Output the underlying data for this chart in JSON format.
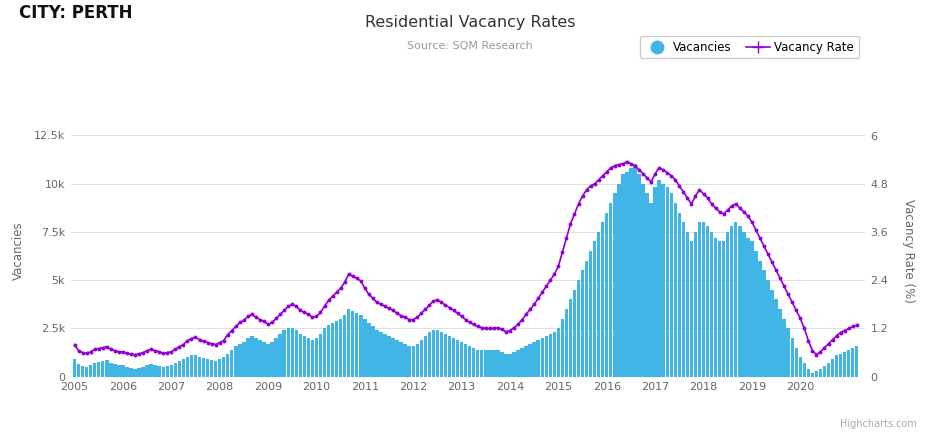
{
  "title": "Residential Vacancy Rates",
  "subtitle": "Source: SQM Research",
  "header": "CITY: PERTH",
  "ylabel_left": "Vacancies",
  "ylabel_right": "Vacancy Rate (%)",
  "bar_color": "#41b6e6",
  "line_color": "#9400d3",
  "background_color": "#ffffff",
  "plot_bg_color": "#ffffff",
  "grid_color": "#e0e0e0",
  "ylim_left": [
    0,
    13000
  ],
  "ylim_right": [
    0,
    6.25
  ],
  "yticks_left": [
    0,
    2500,
    5000,
    7500,
    10000,
    12500
  ],
  "ytick_labels_left": [
    "0",
    "2.5k",
    "5k",
    "7.5k",
    "10k",
    "12.5k"
  ],
  "yticks_right": [
    0,
    1.2,
    2.4,
    3.6,
    4.8,
    6.0
  ],
  "ytick_labels_right": [
    "0",
    "1.2",
    "2.4",
    "3.6",
    "4.8",
    "6"
  ],
  "vacancies": [
    900,
    650,
    550,
    500,
    600,
    700,
    750,
    800,
    850,
    700,
    650,
    600,
    600,
    500,
    450,
    400,
    450,
    500,
    600,
    650,
    600,
    550,
    500,
    550,
    600,
    700,
    800,
    900,
    1000,
    1100,
    1100,
    1000,
    950,
    900,
    850,
    800,
    900,
    1000,
    1200,
    1400,
    1600,
    1700,
    1800,
    2000,
    2100,
    2000,
    1900,
    1800,
    1700,
    1800,
    2000,
    2200,
    2400,
    2500,
    2500,
    2400,
    2200,
    2100,
    2000,
    1900,
    2000,
    2200,
    2500,
    2700,
    2800,
    2900,
    3000,
    3200,
    3500,
    3400,
    3300,
    3200,
    3000,
    2800,
    2600,
    2400,
    2300,
    2200,
    2100,
    2000,
    1900,
    1800,
    1700,
    1600,
    1600,
    1700,
    1900,
    2100,
    2300,
    2400,
    2400,
    2300,
    2200,
    2100,
    2000,
    1900,
    1800,
    1700,
    1600,
    1500,
    1400,
    1400,
    1400,
    1400,
    1400,
    1400,
    1300,
    1200,
    1200,
    1300,
    1400,
    1500,
    1600,
    1700,
    1800,
    1900,
    2000,
    2100,
    2200,
    2300,
    2500,
    3000,
    3500,
    4000,
    4500,
    5000,
    5500,
    6000,
    6500,
    7000,
    7500,
    8000,
    8500,
    9000,
    9500,
    10000,
    10500,
    10600,
    10800,
    11000,
    10500,
    10000,
    9500,
    9000,
    9800,
    10200,
    10000,
    9800,
    9500,
    9000,
    8500,
    8000,
    7500,
    7000,
    7500,
    8000,
    8000,
    7800,
    7500,
    7200,
    7000,
    7000,
    7500,
    7800,
    8000,
    7800,
    7500,
    7200,
    7000,
    6500,
    6000,
    5500,
    5000,
    4500,
    4000,
    3500,
    3000,
    2500,
    2000,
    1500,
    1000,
    700,
    400,
    200,
    300,
    400,
    550,
    700,
    900,
    1100,
    1200,
    1300,
    1400,
    1500,
    1600
  ],
  "vacancy_rate": [
    0.8,
    0.65,
    0.6,
    0.58,
    0.62,
    0.68,
    0.7,
    0.72,
    0.75,
    0.68,
    0.65,
    0.62,
    0.62,
    0.58,
    0.56,
    0.55,
    0.57,
    0.6,
    0.65,
    0.68,
    0.65,
    0.62,
    0.58,
    0.6,
    0.62,
    0.68,
    0.75,
    0.8,
    0.9,
    0.95,
    0.98,
    0.92,
    0.88,
    0.85,
    0.82,
    0.8,
    0.85,
    0.9,
    1.05,
    1.15,
    1.25,
    1.35,
    1.4,
    1.5,
    1.55,
    1.48,
    1.42,
    1.38,
    1.3,
    1.35,
    1.45,
    1.55,
    1.65,
    1.75,
    1.8,
    1.75,
    1.65,
    1.6,
    1.55,
    1.48,
    1.5,
    1.6,
    1.75,
    1.9,
    2.0,
    2.1,
    2.2,
    2.35,
    2.55,
    2.5,
    2.45,
    2.38,
    2.2,
    2.05,
    1.95,
    1.85,
    1.8,
    1.75,
    1.7,
    1.65,
    1.58,
    1.52,
    1.48,
    1.42,
    1.42,
    1.48,
    1.58,
    1.68,
    1.78,
    1.88,
    1.92,
    1.85,
    1.78,
    1.72,
    1.65,
    1.58,
    1.5,
    1.42,
    1.35,
    1.3,
    1.25,
    1.22,
    1.2,
    1.2,
    1.2,
    1.22,
    1.18,
    1.12,
    1.15,
    1.22,
    1.3,
    1.42,
    1.55,
    1.68,
    1.8,
    1.95,
    2.1,
    2.25,
    2.4,
    2.55,
    2.75,
    3.1,
    3.45,
    3.8,
    4.05,
    4.3,
    4.5,
    4.65,
    4.75,
    4.8,
    4.9,
    5.0,
    5.1,
    5.2,
    5.25,
    5.28,
    5.3,
    5.35,
    5.3,
    5.25,
    5.15,
    5.05,
    4.95,
    4.85,
    5.05,
    5.2,
    5.15,
    5.08,
    5.0,
    4.9,
    4.75,
    4.6,
    4.45,
    4.3,
    4.5,
    4.65,
    4.55,
    4.45,
    4.3,
    4.2,
    4.1,
    4.05,
    4.15,
    4.25,
    4.3,
    4.2,
    4.1,
    4.0,
    3.85,
    3.65,
    3.45,
    3.25,
    3.05,
    2.85,
    2.65,
    2.45,
    2.25,
    2.05,
    1.85,
    1.65,
    1.45,
    1.2,
    0.9,
    0.65,
    0.55,
    0.62,
    0.72,
    0.82,
    0.92,
    1.02,
    1.1,
    1.15,
    1.2,
    1.25,
    1.28
  ],
  "start_year": 2005,
  "xtick_years": [
    2005,
    2006,
    2007,
    2008,
    2009,
    2010,
    2011,
    2012,
    2013,
    2014,
    2015,
    2016,
    2017,
    2018,
    2019,
    2020
  ],
  "highcharts_credit": "Highcharts.com"
}
